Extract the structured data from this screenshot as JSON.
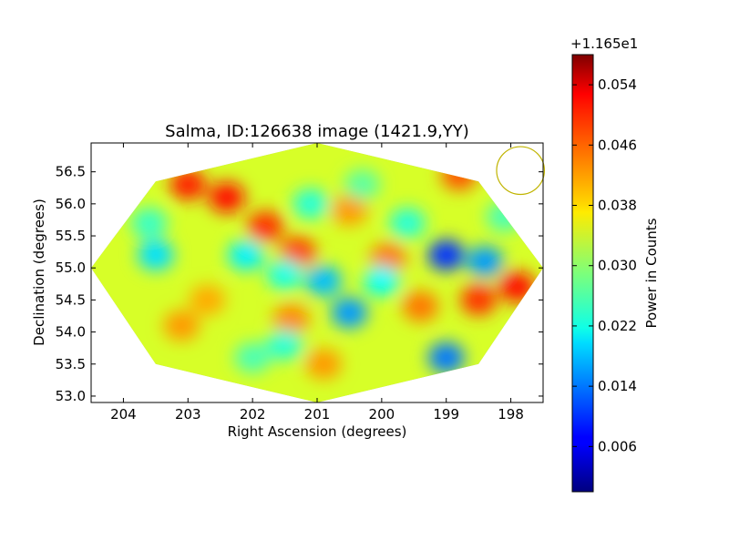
{
  "chart_data": {
    "type": "heatmap",
    "title": "Salma, ID:126638 image (1421.9,YY)",
    "xlabel": "Right Ascension (degrees)",
    "ylabel": "Declination (degrees)",
    "x_reversed": true,
    "xlim": [
      204.5,
      197.5
    ],
    "ylim": [
      52.9,
      56.95
    ],
    "x_ticks": [
      "204",
      "203",
      "202",
      "201",
      "200",
      "199",
      "198"
    ],
    "y_ticks": [
      "53.0",
      "53.5",
      "54.0",
      "54.5",
      "55.0",
      "55.5",
      "56.0",
      "56.5"
    ],
    "colormap": "jet",
    "colorbar": {
      "label": "Power in Counts",
      "offset_text": "+1.165e1",
      "range": [
        0.0,
        0.058
      ],
      "ticks": [
        "0.006",
        "0.014",
        "0.022",
        "0.030",
        "0.038",
        "0.046",
        "0.054"
      ]
    },
    "footprint_outline": [
      [
        204.5,
        55.0
      ],
      [
        203.5,
        56.35
      ],
      [
        201.0,
        56.95
      ],
      [
        198.5,
        56.35
      ],
      [
        197.5,
        55.0
      ],
      [
        198.5,
        53.5
      ],
      [
        201.0,
        52.9
      ],
      [
        203.5,
        53.5
      ]
    ],
    "background_value": 0.034,
    "features": [
      {
        "ra": 201.8,
        "dec": 55.65,
        "value": 0.048
      },
      {
        "ra": 201.3,
        "dec": 55.25,
        "value": 0.047
      },
      {
        "ra": 202.4,
        "dec": 56.1,
        "value": 0.05
      },
      {
        "ra": 203.0,
        "dec": 56.3,
        "value": 0.049
      },
      {
        "ra": 198.5,
        "dec": 54.5,
        "value": 0.048
      },
      {
        "ra": 197.9,
        "dec": 54.7,
        "value": 0.05
      },
      {
        "ra": 199.4,
        "dec": 54.4,
        "value": 0.044
      },
      {
        "ra": 200.5,
        "dec": 55.9,
        "value": 0.042
      },
      {
        "ra": 201.4,
        "dec": 54.2,
        "value": 0.043
      },
      {
        "ra": 200.9,
        "dec": 53.5,
        "value": 0.042
      },
      {
        "ra": 199.9,
        "dec": 55.15,
        "value": 0.044
      },
      {
        "ra": 202.7,
        "dec": 54.5,
        "value": 0.041
      },
      {
        "ra": 203.1,
        "dec": 54.1,
        "value": 0.042
      },
      {
        "ra": 198.8,
        "dec": 56.45,
        "value": 0.046
      },
      {
        "ra": 199.0,
        "dec": 55.2,
        "value": 0.01
      },
      {
        "ra": 198.4,
        "dec": 55.1,
        "value": 0.016
      },
      {
        "ra": 200.5,
        "dec": 54.3,
        "value": 0.016
      },
      {
        "ra": 199.0,
        "dec": 53.6,
        "value": 0.014
      },
      {
        "ra": 202.1,
        "dec": 55.2,
        "value": 0.021
      },
      {
        "ra": 203.5,
        "dec": 55.2,
        "value": 0.02
      },
      {
        "ra": 200.9,
        "dec": 54.8,
        "value": 0.018
      },
      {
        "ra": 200.0,
        "dec": 54.8,
        "value": 0.022
      },
      {
        "ra": 199.6,
        "dec": 55.7,
        "value": 0.024
      },
      {
        "ra": 201.5,
        "dec": 54.9,
        "value": 0.023
      },
      {
        "ra": 201.1,
        "dec": 56.0,
        "value": 0.024
      },
      {
        "ra": 203.6,
        "dec": 55.7,
        "value": 0.025
      },
      {
        "ra": 201.5,
        "dec": 53.8,
        "value": 0.024
      },
      {
        "ra": 198.1,
        "dec": 55.8,
        "value": 0.026
      },
      {
        "ra": 202.0,
        "dec": 53.6,
        "value": 0.026
      },
      {
        "ra": 200.3,
        "dec": 56.3,
        "value": 0.027
      }
    ],
    "beam": {
      "ra": 197.85,
      "dec": 56.52,
      "radius_deg": 0.37,
      "color": "#c0b400"
    }
  }
}
